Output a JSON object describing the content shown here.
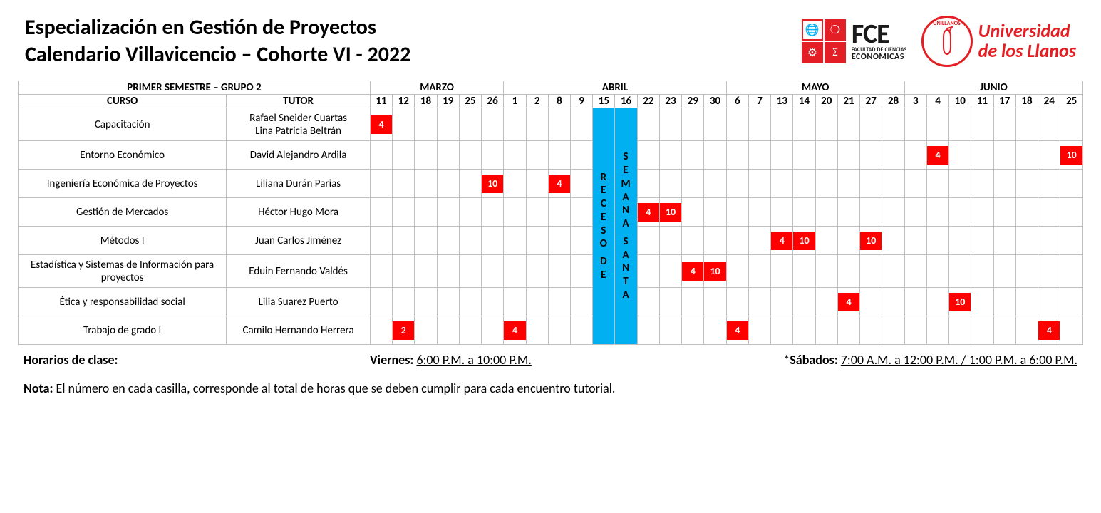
{
  "header": {
    "title_line1": "Especialización en Gestión de Proyectos",
    "title_line2": "Calendario Villavicencio – Cohorte VI - 2022",
    "fce_label_big": "FCE",
    "fce_label_small": "FACULTAD DE CIENCIAS",
    "fce_label_mid": "ECONOMICAS",
    "uni_arc": "UNILLANOS",
    "uni_line1": "Universidad",
    "uni_line2": "de los Llanos"
  },
  "colors": {
    "hours_bg": "#ff0000",
    "hours_fg": "#ffffff",
    "recess_bg": "#00b0f0",
    "border": "#bfbfbf",
    "brand_red": "#e31e24"
  },
  "table": {
    "semester_header": "PRIMER SEMESTRE – GRUPO 2",
    "curso_header": "CURSO",
    "tutor_header": "TUTOR",
    "months": [
      {
        "name": "MARZO",
        "days": [
          "11",
          "12",
          "18",
          "19",
          "25",
          "26"
        ]
      },
      {
        "name": "ABRIL",
        "days": [
          "1",
          "2",
          "8",
          "9",
          "15",
          "16",
          "22",
          "23",
          "29",
          "30"
        ]
      },
      {
        "name": "MAYO",
        "days": [
          "6",
          "7",
          "13",
          "14",
          "20",
          "21",
          "27",
          "28"
        ]
      },
      {
        "name": "JUNIO",
        "days": [
          "3",
          "4",
          "10",
          "11",
          "17",
          "18",
          "24",
          "25"
        ]
      }
    ],
    "recess": {
      "col_left": "RECESO DE",
      "col_right": "SEMANA SANTA",
      "day_indices": [
        10,
        11
      ]
    },
    "rows": [
      {
        "course": "Capacitación",
        "tutor": "Rafael Sneider Cuartas\nLina Patricia Beltrán",
        "cells": {
          "0": "4"
        }
      },
      {
        "course": "Entorno Económico",
        "tutor": "David Alejandro Ardila",
        "cells": {
          "25": "4",
          "31": "10"
        }
      },
      {
        "course": "Ingeniería Económica de Proyectos",
        "tutor": "Liliana Durán Parias",
        "cells": {
          "5": "10",
          "8": "4"
        }
      },
      {
        "course": "Gestión de Mercados",
        "tutor": "Héctor Hugo Mora",
        "cells": {
          "12": "4",
          "13": "10"
        }
      },
      {
        "course": "Métodos I",
        "tutor": "Juan Carlos Jiménez",
        "cells": {
          "18": "4",
          "19": "10",
          "22": "10"
        }
      },
      {
        "course": "Estadística y Sistemas de Información para proyectos",
        "tutor": "Eduin Fernando Valdés",
        "cells": {
          "14": "4",
          "15": "10"
        }
      },
      {
        "course": "Ética y responsabilidad social",
        "tutor": "Lilia Suarez Puerto",
        "cells": {
          "21": "4",
          "26": "10"
        }
      },
      {
        "course": "Trabajo de grado I",
        "tutor": "Camilo Hernando Herrera",
        "cells": {
          "1": "2",
          "6": "4",
          "16": "4",
          "30": "4"
        }
      }
    ]
  },
  "footer": {
    "schedule_label": "Horarios de clase:",
    "friday_label": "Viernes:",
    "friday_time": "6:00 P.M. a 10:00 P.M.",
    "saturday_prefix": "*",
    "saturday_label": "Sábados:",
    "saturday_time": "7:00 A.M. a 12:00 P.M. / 1:00 P.M. a 6:00 P.M.",
    "note_label": "Nota:",
    "note_text": "El número en cada casilla, corresponde al total de horas que se deben cumplir para cada encuentro tutorial."
  }
}
